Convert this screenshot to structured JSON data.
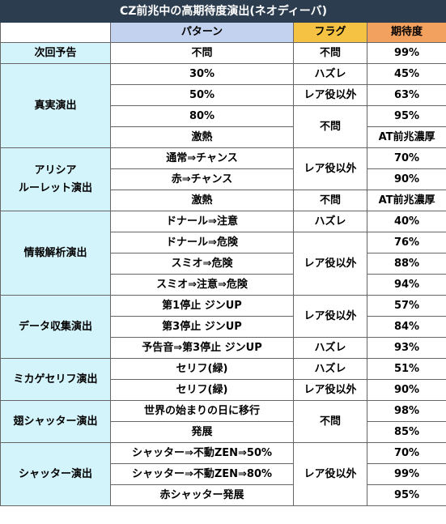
{
  "title": "CZ前兆中の高期待度演出(ネオディーバ)",
  "headers": {
    "pattern": "パターン",
    "flag": "フラグ",
    "expectation": "期待度"
  },
  "sections": [
    {
      "category": "次回予告",
      "rows": [
        {
          "pattern": "不問",
          "flag": "不問",
          "expectation": "99%"
        }
      ]
    },
    {
      "category": "真実演出",
      "rows": [
        {
          "pattern": "30%",
          "flag": "ハズレ",
          "expectation": "45%"
        },
        {
          "pattern": "50%",
          "flag": "レア役以外",
          "expectation": "63%"
        },
        {
          "pattern": "80%",
          "flag": "不問",
          "expectation": "95%"
        },
        {
          "pattern": "激熱",
          "expectation": "AT前兆濃厚"
        }
      ]
    },
    {
      "category_line1": "アリシア",
      "category_line2": "ルーレット演出",
      "rows": [
        {
          "pattern": "通常⇒チャンス",
          "flag": "レア役以外",
          "expectation": "70%"
        },
        {
          "pattern": "赤⇒チャンス",
          "expectation": "90%"
        },
        {
          "pattern": "激熱",
          "flag": "不問",
          "expectation": "AT前兆濃厚"
        }
      ]
    },
    {
      "category": "情報解析演出",
      "rows": [
        {
          "pattern": "ドナール⇒注意",
          "flag": "ハズレ",
          "expectation": "40%"
        },
        {
          "pattern": "ドナール⇒危険",
          "flag": "レア役以外",
          "expectation": "76%"
        },
        {
          "pattern": "スミオ⇒危険",
          "expectation": "88%"
        },
        {
          "pattern": "スミオ⇒注意⇒危険",
          "expectation": "94%"
        }
      ]
    },
    {
      "category": "データ収集演出",
      "rows": [
        {
          "pattern": "第1停止 ジンUP",
          "flag": "レア役以外",
          "expectation": "57%"
        },
        {
          "pattern": "第3停止 ジンUP",
          "expectation": "84%"
        },
        {
          "pattern": "予告音⇒第3停止 ジンUP",
          "flag": "ハズレ",
          "expectation": "93%"
        }
      ]
    },
    {
      "category": "ミカゲセリフ演出",
      "rows": [
        {
          "pattern": "セリフ(緑)",
          "flag": "ハズレ",
          "expectation": "51%"
        },
        {
          "pattern": "セリフ(緑)",
          "flag": "レア役以外",
          "expectation": "90%"
        }
      ]
    },
    {
      "category": "翅シャッター演出",
      "rows": [
        {
          "pattern": "世界の始まりの日に移行",
          "flag": "不問",
          "expectation": "98%"
        },
        {
          "pattern": "発展",
          "expectation": "85%"
        }
      ]
    },
    {
      "category": "シャッター演出",
      "rows": [
        {
          "pattern": "シャッター⇒不動ZEN⇒50%",
          "flag": "レア役以外",
          "expectation": "70%"
        },
        {
          "pattern": "シャッター⇒不動ZEN⇒80%",
          "expectation": "99%"
        },
        {
          "pattern": "赤シャッター発展",
          "expectation": "95%"
        }
      ]
    }
  ]
}
